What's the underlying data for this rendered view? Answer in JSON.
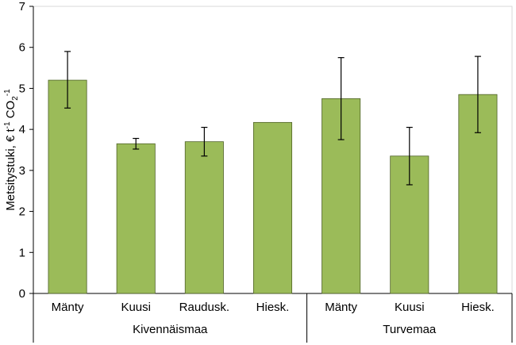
{
  "chart_data": {
    "type": "bar",
    "title": "",
    "ylabel": "Metsitystuki, € t-1 CO2-1",
    "ylabel_parts": {
      "base": "Metsitystuki, € t",
      "sup1": "-1",
      "mid": " CO",
      "sub": "2",
      "sup2": "-1"
    },
    "ylim": [
      0,
      7
    ],
    "yticks": [
      0,
      1,
      2,
      3,
      4,
      5,
      6,
      7
    ],
    "grid": false,
    "bar_color": "#9BBB59",
    "bar_edge_color": "#4F6228",
    "groups": [
      {
        "name": "Kivennäismaa",
        "categories": [
          "Mänty",
          "Kuusi",
          "Raudusk.",
          "Hiesk."
        ],
        "values": [
          5.2,
          3.65,
          3.7,
          4.17
        ],
        "error_low": [
          4.52,
          3.52,
          3.35,
          null
        ],
        "error_high": [
          5.9,
          3.78,
          4.05,
          null
        ]
      },
      {
        "name": "Turvemaa",
        "categories": [
          "Mänty",
          "Kuusi",
          "Hiesk."
        ],
        "values": [
          4.75,
          3.35,
          4.85
        ],
        "error_low": [
          3.75,
          2.65,
          3.92
        ],
        "error_high": [
          5.75,
          4.05,
          5.78
        ]
      }
    ]
  }
}
